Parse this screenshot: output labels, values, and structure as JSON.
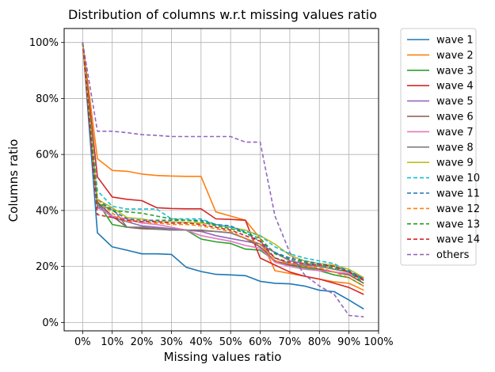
{
  "chart_data": {
    "type": "line",
    "title": "Distribution of columns w.r.t missing values ratio",
    "xlabel": "Missing values ratio",
    "ylabel": "Columns ratio",
    "xlim": [
      -0.0625,
      1.0
    ],
    "ylim": [
      -0.03,
      1.05
    ],
    "xticks": [
      0,
      0.1,
      0.2,
      0.3,
      0.4,
      0.5,
      0.6,
      0.7,
      0.8,
      0.9,
      1.0
    ],
    "xtick_labels": [
      "0%",
      "10%",
      "20%",
      "30%",
      "40%",
      "50%",
      "60%",
      "70%",
      "80%",
      "90%",
      "100%"
    ],
    "yticks": [
      0,
      0.2,
      0.4,
      0.6,
      0.8,
      1.0
    ],
    "ytick_labels": [
      "0%",
      "20%",
      "40%",
      "60%",
      "80%",
      "100%"
    ],
    "grid": true,
    "legend_position": "outside-right",
    "x": [
      0,
      0.05,
      0.1,
      0.15,
      0.2,
      0.25,
      0.3,
      0.35,
      0.4,
      0.45,
      0.5,
      0.55,
      0.6,
      0.65,
      0.7,
      0.75,
      0.8,
      0.85,
      0.9,
      0.95
    ],
    "series": [
      {
        "name": "wave 1",
        "color": "#1f77b4",
        "dash": "solid",
        "values": [
          1.0,
          0.32,
          0.27,
          0.258,
          0.245,
          0.245,
          0.243,
          0.197,
          0.182,
          0.172,
          0.17,
          0.167,
          0.147,
          0.14,
          0.138,
          0.13,
          0.115,
          0.11,
          0.08,
          0.048
        ]
      },
      {
        "name": "wave 2",
        "color": "#ff7f0e",
        "dash": "solid",
        "values": [
          1.0,
          0.585,
          0.543,
          0.54,
          0.53,
          0.525,
          0.523,
          0.522,
          0.522,
          0.395,
          0.38,
          0.365,
          0.3,
          0.185,
          0.175,
          0.165,
          0.155,
          0.145,
          0.14,
          0.115
        ]
      },
      {
        "name": "wave 3",
        "color": "#2ca02c",
        "dash": "solid",
        "values": [
          1.0,
          0.43,
          0.35,
          0.34,
          0.338,
          0.336,
          0.335,
          0.33,
          0.298,
          0.288,
          0.282,
          0.262,
          0.258,
          0.22,
          0.205,
          0.195,
          0.185,
          0.17,
          0.16,
          0.13
        ]
      },
      {
        "name": "wave 4",
        "color": "#d62728",
        "dash": "solid",
        "values": [
          1.0,
          0.52,
          0.448,
          0.44,
          0.435,
          0.41,
          0.407,
          0.406,
          0.406,
          0.37,
          0.368,
          0.365,
          0.23,
          0.205,
          0.18,
          0.165,
          0.155,
          0.14,
          0.125,
          0.1
        ]
      },
      {
        "name": "wave 5",
        "color": "#9467bd",
        "dash": "solid",
        "values": [
          1.0,
          0.42,
          0.375,
          0.36,
          0.345,
          0.34,
          0.335,
          0.33,
          0.325,
          0.31,
          0.3,
          0.29,
          0.28,
          0.25,
          0.22,
          0.21,
          0.2,
          0.19,
          0.18,
          0.16
        ]
      },
      {
        "name": "wave 6",
        "color": "#8c564b",
        "dash": "solid",
        "values": [
          1.0,
          0.43,
          0.38,
          0.34,
          0.335,
          0.333,
          0.33,
          0.33,
          0.328,
          0.325,
          0.32,
          0.3,
          0.27,
          0.22,
          0.205,
          0.2,
          0.19,
          0.18,
          0.17,
          0.14
        ]
      },
      {
        "name": "wave 7",
        "color": "#e377c2",
        "dash": "solid",
        "values": [
          1.0,
          0.41,
          0.38,
          0.37,
          0.355,
          0.35,
          0.34,
          0.33,
          0.31,
          0.3,
          0.29,
          0.275,
          0.265,
          0.215,
          0.2,
          0.19,
          0.185,
          0.18,
          0.175,
          0.15
        ]
      },
      {
        "name": "wave 8",
        "color": "#7f7f7f",
        "dash": "solid",
        "values": [
          1.0,
          0.41,
          0.41,
          0.34,
          0.34,
          0.335,
          0.33,
          0.33,
          0.33,
          0.325,
          0.32,
          0.3,
          0.28,
          0.23,
          0.21,
          0.205,
          0.2,
          0.19,
          0.18,
          0.155
        ]
      },
      {
        "name": "wave 9",
        "color": "#bcbd22",
        "dash": "solid",
        "values": [
          1.0,
          0.44,
          0.41,
          0.375,
          0.37,
          0.36,
          0.36,
          0.358,
          0.355,
          0.35,
          0.34,
          0.33,
          0.31,
          0.28,
          0.24,
          0.22,
          0.21,
          0.205,
          0.19,
          0.16
        ]
      },
      {
        "name": "wave 10",
        "color": "#17becf",
        "dash": "dashed",
        "values": [
          1.0,
          0.47,
          0.415,
          0.405,
          0.405,
          0.405,
          0.37,
          0.37,
          0.37,
          0.35,
          0.34,
          0.325,
          0.31,
          0.27,
          0.245,
          0.23,
          0.22,
          0.21,
          0.18,
          0.15
        ]
      },
      {
        "name": "wave 11",
        "color": "#1f77b4",
        "dash": "dashed",
        "values": [
          1.0,
          0.44,
          0.4,
          0.37,
          0.365,
          0.365,
          0.365,
          0.365,
          0.365,
          0.35,
          0.345,
          0.32,
          0.29,
          0.25,
          0.23,
          0.22,
          0.21,
          0.2,
          0.185,
          0.155
        ]
      },
      {
        "name": "wave 12",
        "color": "#ff7f0e",
        "dash": "dashed",
        "values": [
          1.0,
          0.44,
          0.39,
          0.36,
          0.36,
          0.355,
          0.35,
          0.35,
          0.345,
          0.335,
          0.325,
          0.3,
          0.28,
          0.22,
          0.21,
          0.2,
          0.195,
          0.18,
          0.16,
          0.13
        ]
      },
      {
        "name": "wave 13",
        "color": "#2ca02c",
        "dash": "dashed",
        "values": [
          1.0,
          0.43,
          0.4,
          0.395,
          0.39,
          0.38,
          0.37,
          0.365,
          0.36,
          0.345,
          0.335,
          0.32,
          0.3,
          0.245,
          0.225,
          0.215,
          0.205,
          0.195,
          0.18,
          0.14
        ]
      },
      {
        "name": "wave 14",
        "color": "#d62728",
        "dash": "dashed",
        "values": [
          1.0,
          0.385,
          0.375,
          0.365,
          0.36,
          0.36,
          0.355,
          0.355,
          0.35,
          0.34,
          0.33,
          0.31,
          0.29,
          0.23,
          0.215,
          0.21,
          0.205,
          0.2,
          0.18,
          0.15
        ]
      },
      {
        "name": "others",
        "color": "#9467bd",
        "dash": "dashed",
        "values": [
          1.0,
          0.683,
          0.683,
          0.678,
          0.671,
          0.668,
          0.664,
          0.664,
          0.664,
          0.664,
          0.664,
          0.644,
          0.644,
          0.38,
          0.25,
          0.17,
          0.13,
          0.1,
          0.025,
          0.02
        ]
      }
    ]
  }
}
